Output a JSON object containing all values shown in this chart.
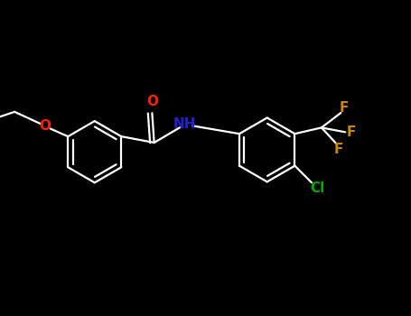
{
  "bg_color": "#000000",
  "bond_color": "#ffffff",
  "O_color": "#ff2200",
  "N_color": "#2222cc",
  "F_color": "#cc8800",
  "Cl_color": "#00aa00",
  "line_width": 1.6,
  "fig_width": 4.55,
  "fig_height": 3.5,
  "dpi": 100,
  "xlim": [
    0,
    10
  ],
  "ylim": [
    0,
    7.7
  ]
}
